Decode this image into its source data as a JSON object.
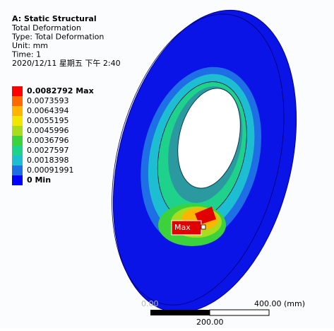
{
  "header": {
    "title": "A: Static Structural",
    "lines": [
      "Total Deformation",
      "Type: Total Deformation",
      "Unit: mm",
      "Time: 1",
      "2020/12/11 星期五 下午 2:40"
    ]
  },
  "legend": {
    "items": [
      {
        "label": "0.0082792 Max",
        "color": "#ff0000"
      },
      {
        "label": "0.0073593",
        "color": "#ff6a00"
      },
      {
        "label": "0.0064394",
        "color": "#ffb400"
      },
      {
        "label": "0.0055195",
        "color": "#f0e600"
      },
      {
        "label": "0.0045996",
        "color": "#aadc1e"
      },
      {
        "label": "0.0036796",
        "color": "#3cd23c"
      },
      {
        "label": "0.0027597",
        "color": "#1ed28c"
      },
      {
        "label": "0.0018398",
        "color": "#1ebed2"
      },
      {
        "label": "0.00091991",
        "color": "#1e6ee6"
      },
      {
        "label": "0 Min",
        "color": "#0000ff"
      }
    ]
  },
  "probe": {
    "label": "Max"
  },
  "scale_bar": {
    "start": "0.00",
    "middle": "200.00",
    "end": "400.00 (mm)"
  }
}
